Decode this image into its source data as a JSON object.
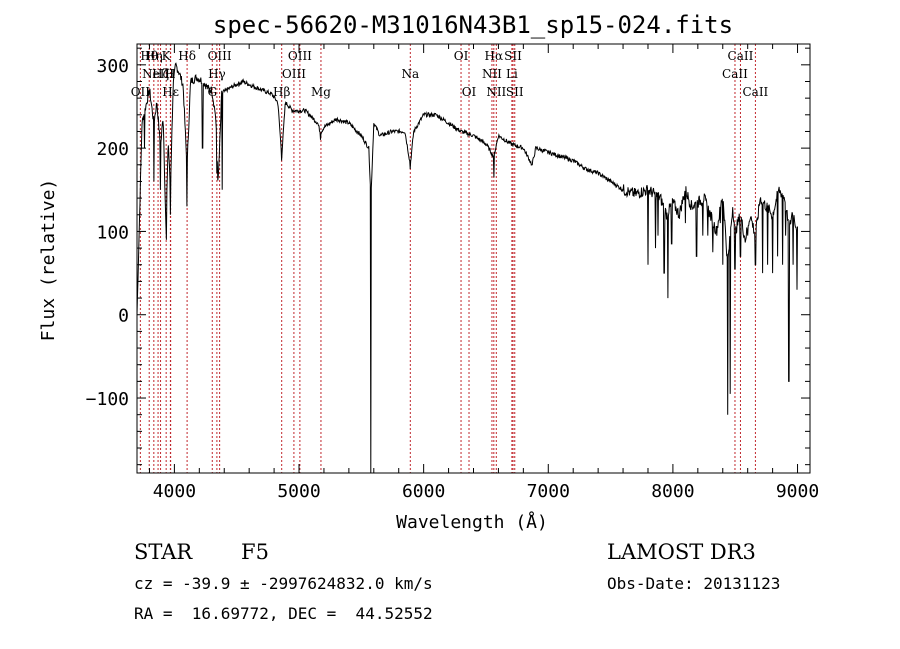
{
  "chart_data": {
    "type": "line",
    "title": "spec-56620-M31016N43B1_sp15-024.fits",
    "xlabel": "Wavelength (Å)",
    "ylabel": "Flux (relative)",
    "xlim": [
      3700,
      9100
    ],
    "ylim": [
      -190,
      325
    ],
    "x_ticks": [
      {
        "value": 4000,
        "label": "4000"
      },
      {
        "value": 5000,
        "label": "5000"
      },
      {
        "value": 6000,
        "label": "6000"
      },
      {
        "value": 7000,
        "label": "7000"
      },
      {
        "value": 8000,
        "label": "8000"
      },
      {
        "value": 9000,
        "label": "9000"
      }
    ],
    "y_ticks": [
      {
        "value": -100,
        "label": "−100"
      },
      {
        "value": 0,
        "label": "0"
      },
      {
        "value": 100,
        "label": "100"
      },
      {
        "value": 200,
        "label": "200"
      },
      {
        "value": 300,
        "label": "300"
      }
    ],
    "series": [
      {
        "name": "flux",
        "x": [
          3700,
          3720,
          3740,
          3770,
          3800,
          3835,
          3860,
          3889,
          3910,
          3933,
          3950,
          3968,
          3990,
          4010,
          4040,
          4070,
          4101,
          4130,
          4180,
          4230,
          4280,
          4300,
          4330,
          4340,
          4350,
          4380,
          4420,
          4480,
          4550,
          4620,
          4700,
          4780,
          4830,
          4861,
          4890,
          4950,
          5050,
          5150,
          5172,
          5200,
          5300,
          5400,
          5500,
          5560,
          5577,
          5600,
          5650,
          5750,
          5850,
          5893,
          5920,
          6000,
          6100,
          6200,
          6300,
          6400,
          6500,
          6563,
          6600,
          6700,
          6800,
          6870,
          6900,
          7000,
          7100,
          7200,
          7300,
          7400,
          7500,
          7600,
          7700,
          7800,
          7850,
          7900,
          7950,
          8000,
          8050,
          8100,
          8150,
          8200,
          8250,
          8300,
          8350,
          8400,
          8440,
          8480,
          8500,
          8542,
          8580,
          8620,
          8662,
          8700,
          8750,
          8800,
          8850,
          8900,
          8930,
          8960,
          9000
        ],
        "y": [
          0,
          115,
          230,
          250,
          270,
          230,
          255,
          200,
          240,
          100,
          210,
          150,
          275,
          300,
          290,
          275,
          175,
          280,
          285,
          280,
          270,
          270,
          240,
          205,
          155,
          265,
          270,
          275,
          280,
          275,
          270,
          265,
          255,
          190,
          255,
          245,
          245,
          230,
          218,
          225,
          235,
          230,
          215,
          200,
          140,
          230,
          215,
          220,
          220,
          180,
          220,
          240,
          240,
          230,
          220,
          215,
          205,
          190,
          215,
          205,
          200,
          180,
          200,
          195,
          190,
          185,
          175,
          170,
          160,
          150,
          145,
          150,
          145,
          140,
          120,
          135,
          120,
          150,
          130,
          135,
          140,
          120,
          100,
          145,
          60,
          130,
          100,
          120,
          90,
          120,
          95,
          140,
          130,
          120,
          150,
          140,
          100,
          125,
          100
        ]
      }
    ],
    "spikes": [
      {
        "x": 3760,
        "y": 200
      },
      {
        "x": 3835,
        "y": 160
      },
      {
        "x": 3889,
        "y": 150
      },
      {
        "x": 3935,
        "y": 90
      },
      {
        "x": 3968,
        "y": 120
      },
      {
        "x": 4101,
        "y": 130
      },
      {
        "x": 4226,
        "y": 200
      },
      {
        "x": 4340,
        "y": 170
      },
      {
        "x": 4383,
        "y": 150
      },
      {
        "x": 4861,
        "y": 185
      },
      {
        "x": 5172,
        "y": 210
      },
      {
        "x": 5577,
        "y": -190
      },
      {
        "x": 5893,
        "y": 175
      },
      {
        "x": 6563,
        "y": 165
      },
      {
        "x": 6870,
        "y": 180
      },
      {
        "x": 7600,
        "y": 150
      },
      {
        "x": 7655,
        "y": 150
      },
      {
        "x": 7800,
        "y": 60
      },
      {
        "x": 7860,
        "y": 80
      },
      {
        "x": 7880,
        "y": 95
      },
      {
        "x": 7930,
        "y": 50
      },
      {
        "x": 7960,
        "y": 20
      },
      {
        "x": 7990,
        "y": 85
      },
      {
        "x": 8100,
        "y": 110
      },
      {
        "x": 8190,
        "y": 70
      },
      {
        "x": 8240,
        "y": 95
      },
      {
        "x": 8280,
        "y": 95
      },
      {
        "x": 8320,
        "y": 75
      },
      {
        "x": 8380,
        "y": 110
      },
      {
        "x": 8400,
        "y": 60
      },
      {
        "x": 8440,
        "y": -120
      },
      {
        "x": 8460,
        "y": -95
      },
      {
        "x": 8498,
        "y": 55
      },
      {
        "x": 8542,
        "y": 70
      },
      {
        "x": 8600,
        "y": 95
      },
      {
        "x": 8662,
        "y": 60
      },
      {
        "x": 8720,
        "y": 50
      },
      {
        "x": 8760,
        "y": 60
      },
      {
        "x": 8800,
        "y": 50
      },
      {
        "x": 8840,
        "y": 70
      },
      {
        "x": 8880,
        "y": 60
      },
      {
        "x": 8905,
        "y": 95
      },
      {
        "x": 8930,
        "y": -80
      },
      {
        "x": 8965,
        "y": 60
      },
      {
        "x": 8995,
        "y": 30
      }
    ],
    "line_markers": [
      {
        "x": 3727,
        "label": "OII",
        "row": 3
      },
      {
        "x": 3798,
        "label": "Hθ",
        "row": 1
      },
      {
        "x": 3835,
        "label": "Hη",
        "row": 1
      },
      {
        "x": 3869,
        "label": "NeIII",
        "row": 2
      },
      {
        "x": 3889,
        "label": "Hζ",
        "row": 2
      },
      {
        "x": 3934,
        "label": "K",
        "row": 1
      },
      {
        "x": 3968,
        "label": "H",
        "row": 2
      },
      {
        "x": 3970,
        "label": "Hε",
        "row": 3
      },
      {
        "x": 4102,
        "label": "Hδ",
        "row": 1
      },
      {
        "x": 4304,
        "label": "G",
        "row": 3
      },
      {
        "x": 4341,
        "label": "Hγ",
        "row": 2
      },
      {
        "x": 4363,
        "label": "OIII",
        "row": 1
      },
      {
        "x": 4861,
        "label": "Hβ",
        "row": 3
      },
      {
        "x": 4959,
        "label": "OIII",
        "row": 2
      },
      {
        "x": 5007,
        "label": "OIII",
        "row": 1
      },
      {
        "x": 5176,
        "label": "Mg",
        "row": 3
      },
      {
        "x": 5893,
        "label": "Na",
        "row": 2
      },
      {
        "x": 6300,
        "label": "OI",
        "row": 1
      },
      {
        "x": 6364,
        "label": "OI",
        "row": 3
      },
      {
        "x": 6548,
        "label": "NII",
        "row": 2
      },
      {
        "x": 6563,
        "label": "Hα",
        "row": 1
      },
      {
        "x": 6583,
        "label": "NII",
        "row": 3
      },
      {
        "x": 6708,
        "label": "Li",
        "row": 2
      },
      {
        "x": 6717,
        "label": "SII",
        "row": 1
      },
      {
        "x": 6731,
        "label": "SII",
        "row": 3
      },
      {
        "x": 8498,
        "label": "CaII",
        "row": 2
      },
      {
        "x": 8542,
        "label": "CaII",
        "row": 1
      },
      {
        "x": 8662,
        "label": "CaII",
        "row": 3
      }
    ],
    "colors": {
      "spectrum": "#000000",
      "markers": "#c1272d",
      "axes": "#000000"
    }
  },
  "info": {
    "object_class": "STAR",
    "subclass": "F5",
    "survey": "LAMOST DR3",
    "redshift": "cz = -39.9 ± -2997624832.0 km/s",
    "obs_date": "Obs-Date: 20131123",
    "coords": "RA =  16.69772, DEC =  44.52552"
  }
}
